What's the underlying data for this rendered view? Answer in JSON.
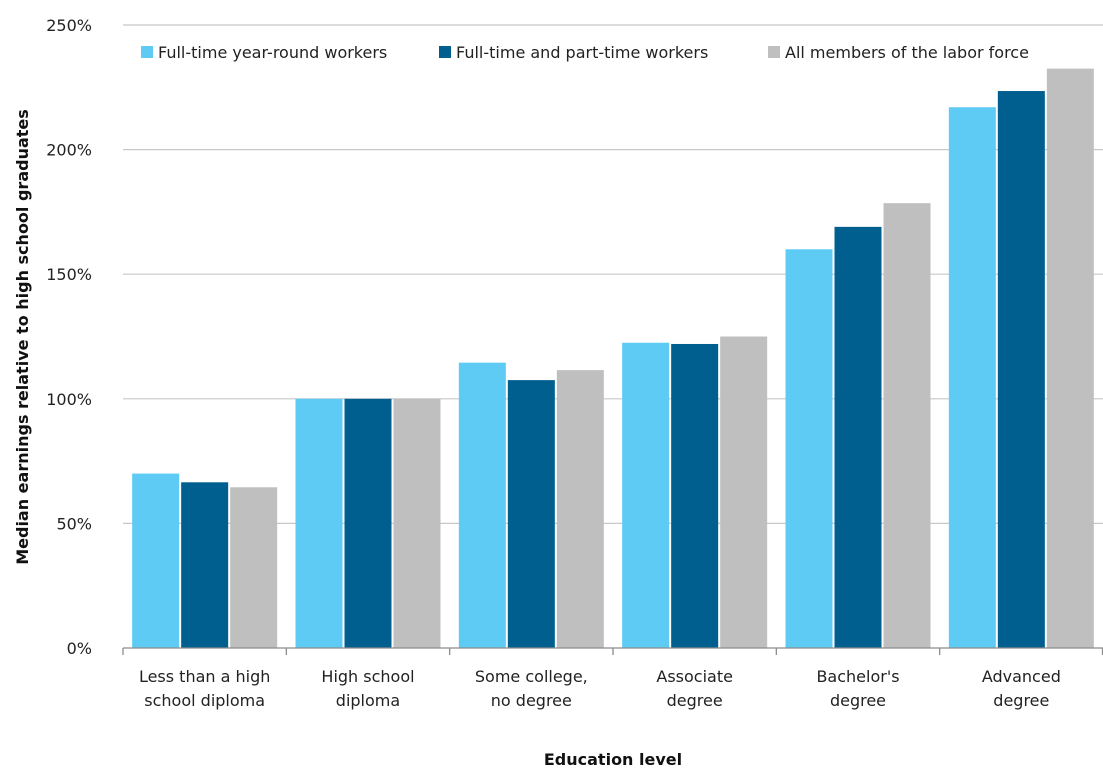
{
  "chart_data": {
    "type": "bar",
    "categories": [
      [
        "Less than a high",
        "school diploma"
      ],
      [
        "High school",
        "diploma"
      ],
      [
        "Some college,",
        "no degree"
      ],
      [
        "Associate",
        "degree"
      ],
      [
        "Bachelor's",
        "degree"
      ],
      [
        "Advanced",
        "degree"
      ]
    ],
    "series": [
      {
        "name": "Full-time year-round workers",
        "color": "#5ecbf5",
        "values": [
          70,
          100,
          114.5,
          122.5,
          160,
          217
        ]
      },
      {
        "name": "Full-time and part-time workers",
        "color": "#005f8f",
        "values": [
          66.5,
          100,
          107.5,
          122,
          169,
          223.5
        ]
      },
      {
        "name": "All members of the labor force",
        "color": "#bfbfbf",
        "values": [
          64.5,
          100,
          111.5,
          125,
          178.5,
          232.5
        ]
      }
    ],
    "xlabel": "Education level",
    "ylabel": "Median earnings relative to high school graduates",
    "ylim": [
      0,
      250
    ],
    "yticks": [
      "0%",
      "50%",
      "100%",
      "150%",
      "200%",
      "250%"
    ],
    "grid": true,
    "legend_position": "top"
  }
}
